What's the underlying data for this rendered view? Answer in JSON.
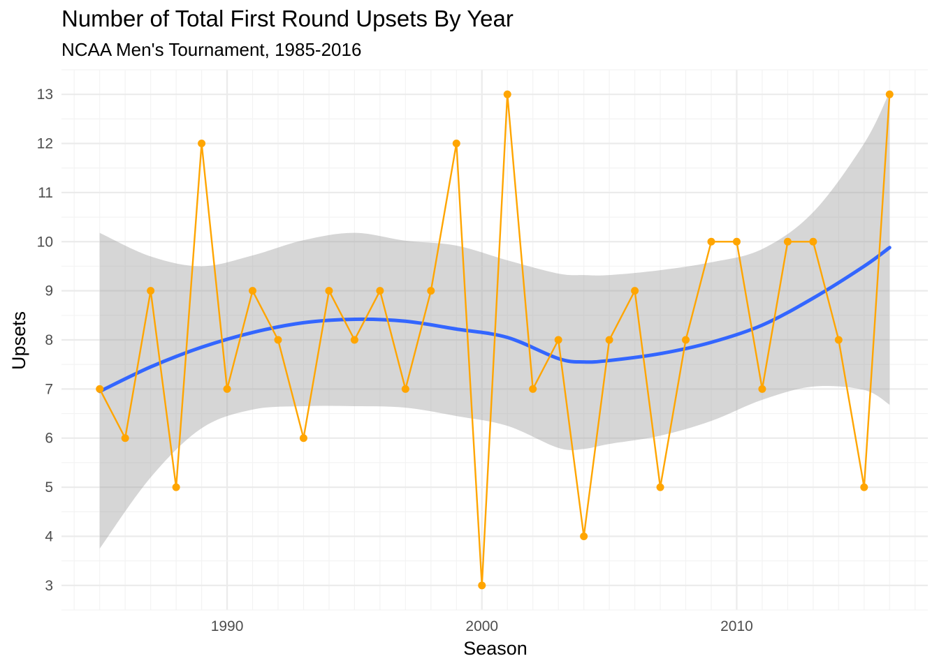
{
  "chart_data": {
    "type": "line",
    "title": "Number of Total First Round Upsets By Year",
    "subtitle": "NCAA Men's Tournament, 1985-2016",
    "xlabel": "Season",
    "ylabel": "Upsets",
    "xlim": [
      1983.5,
      2017.5
    ],
    "ylim": [
      2.5,
      13.5
    ],
    "x_ticks": [
      1990,
      2000,
      2010
    ],
    "y_ticks": [
      3,
      4,
      5,
      6,
      7,
      8,
      9,
      10,
      11,
      12,
      13
    ],
    "grid": true,
    "series": [
      {
        "x": [
          1985,
          1986,
          1987,
          1988,
          1989,
          1990,
          1991,
          1992,
          1993,
          1994,
          1995,
          1996,
          1997,
          1998,
          1999,
          2000,
          2001,
          2002,
          2003,
          2004,
          2005,
          2006,
          2007,
          2008,
          2009,
          2010,
          2011,
          2012,
          2013,
          2014,
          2015,
          2016
        ],
        "values": [
          7,
          6,
          9,
          5,
          12,
          7,
          9,
          8,
          6,
          9,
          8,
          9,
          7,
          9,
          12,
          3,
          13,
          7,
          8,
          4,
          8,
          9,
          5,
          8,
          10,
          10,
          7,
          10,
          10,
          8,
          5,
          13
        ],
        "color": "#FFA500"
      }
    ],
    "smooth": {
      "color": "#3366FF",
      "band_color": "#999999",
      "x": [
        1985,
        1987,
        1989,
        1991,
        1993,
        1995,
        1997,
        1999,
        2001,
        2003,
        2004,
        2005,
        2007,
        2009,
        2011,
        2013,
        2015,
        2016
      ],
      "fit": [
        6.95,
        7.45,
        7.85,
        8.15,
        8.35,
        8.42,
        8.38,
        8.22,
        8.05,
        7.62,
        7.55,
        7.58,
        7.72,
        7.95,
        8.3,
        8.85,
        9.5,
        9.88
      ],
      "lower": [
        3.75,
        5.2,
        6.2,
        6.58,
        6.65,
        6.65,
        6.62,
        6.45,
        6.25,
        5.8,
        5.78,
        5.88,
        6.05,
        6.35,
        6.78,
        7.05,
        6.98,
        6.68
      ],
      "upper": [
        10.18,
        9.7,
        9.5,
        9.72,
        10.03,
        10.18,
        10.02,
        9.92,
        9.62,
        9.35,
        9.32,
        9.32,
        9.42,
        9.58,
        9.85,
        10.6,
        12.0,
        13.05
      ]
    }
  }
}
